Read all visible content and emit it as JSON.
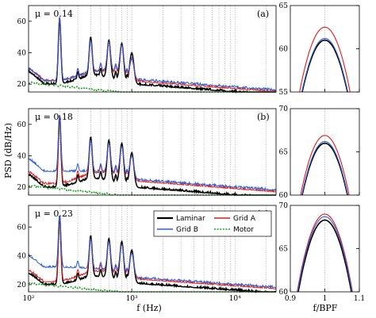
{
  "figure": {
    "ylabel": "PSD (dB/Hz)",
    "xlabel_left": "f (Hz)",
    "xlabel_right": "f/BPF",
    "left_xticklabels": [
      "10²",
      "10³",
      "10⁴"
    ],
    "right_xticklabels": [
      "0.9",
      "1",
      "1.1"
    ],
    "legend": [
      "Laminar",
      "Grid A",
      "Grid B",
      "Motor"
    ],
    "colors": {
      "Laminar": "#000000",
      "Grid A": "#e41a1c",
      "Grid B": "#2b5fd9",
      "Motor": "#1fa11f"
    }
  },
  "chart_data": [
    {
      "type": "line",
      "panel": "a",
      "annotation": "μ = 0.14",
      "letter": "(a)",
      "xscale": "log",
      "xlim": [
        100,
        25000
      ],
      "ylim": [
        15,
        70
      ],
      "yticks": [
        20,
        40,
        60
      ],
      "peaks_hz": [
        200,
        400,
        600,
        800,
        1000
      ],
      "series": [
        {
          "name": "Laminar",
          "peak_db": [
            62,
            50,
            48,
            46,
            40
          ],
          "floor_db": [
            20,
            26,
            24,
            22,
            20
          ]
        },
        {
          "name": "Grid A",
          "peak_db": [
            63,
            48,
            47,
            45,
            36
          ],
          "floor_db": [
            22,
            28,
            28,
            26,
            22
          ]
        },
        {
          "name": "Grid B",
          "peak_db": [
            63,
            48,
            47,
            45,
            37
          ],
          "floor_db": [
            22,
            28,
            29,
            27,
            23
          ]
        },
        {
          "name": "Motor",
          "peak_db": [
            21,
            20,
            19,
            18,
            17
          ],
          "floor_db": [
            17,
            16,
            15,
            14,
            13
          ]
        }
      ]
    },
    {
      "type": "line",
      "panel": "b",
      "annotation": "μ = 0.18",
      "letter": "(b)",
      "xscale": "log",
      "xlim": [
        100,
        25000
      ],
      "ylim": [
        15,
        70
      ],
      "yticks": [
        20,
        40,
        60
      ],
      "peaks_hz": [
        200,
        400,
        600,
        800,
        1000
      ],
      "series": [
        {
          "name": "Laminar",
          "peak_db": [
            66,
            52,
            50,
            48,
            42
          ],
          "floor_db": [
            20,
            26,
            24,
            22,
            20
          ]
        },
        {
          "name": "Grid A",
          "peak_db": [
            66,
            50,
            48,
            46,
            40
          ],
          "floor_db": [
            22,
            29,
            29,
            27,
            24
          ]
        },
        {
          "name": "Grid B",
          "peak_db": [
            66,
            50,
            48,
            46,
            40
          ],
          "floor_db": [
            30,
            30,
            30,
            28,
            25
          ]
        },
        {
          "name": "Motor",
          "peak_db": [
            21,
            20,
            19,
            18,
            17
          ],
          "floor_db": [
            17,
            16,
            15,
            14,
            13
          ]
        }
      ]
    },
    {
      "type": "line",
      "panel": "c",
      "annotation": "μ = 0.23",
      "letter": "(c)",
      "xscale": "log",
      "xlim": [
        100,
        25000
      ],
      "ylim": [
        15,
        75
      ],
      "yticks": [
        20,
        40,
        60
      ],
      "peaks_hz": [
        200,
        400,
        600,
        800,
        1000
      ],
      "series": [
        {
          "name": "Laminar",
          "peak_db": [
            68,
            54,
            52,
            50,
            44
          ],
          "floor_db": [
            20,
            26,
            25,
            23,
            21
          ]
        },
        {
          "name": "Grid A",
          "peak_db": [
            68,
            52,
            50,
            48,
            42
          ],
          "floor_db": [
            22,
            29,
            29,
            27,
            24
          ]
        },
        {
          "name": "Grid B",
          "peak_db": [
            68,
            52,
            50,
            48,
            42
          ],
          "floor_db": [
            32,
            31,
            30,
            28,
            25
          ]
        },
        {
          "name": "Motor",
          "peak_db": [
            21,
            20,
            19,
            18,
            17
          ],
          "floor_db": [
            17,
            16,
            15,
            14,
            13
          ]
        }
      ]
    },
    {
      "type": "line",
      "panel": "a-zoom",
      "xlim": [
        0.9,
        1.1
      ],
      "ylim": [
        55,
        65
      ],
      "yticks": [
        55,
        60,
        65
      ],
      "series": [
        {
          "name": "Laminar",
          "peak_db": 61.0
        },
        {
          "name": "Grid A",
          "peak_db": 62.5
        },
        {
          "name": "Grid B",
          "peak_db": 61.2
        }
      ]
    },
    {
      "type": "line",
      "panel": "b-zoom",
      "xlim": [
        0.9,
        1.1
      ],
      "ylim": [
        60,
        70
      ],
      "yticks": [
        60,
        65,
        70
      ],
      "series": [
        {
          "name": "Laminar",
          "peak_db": 66.0
        },
        {
          "name": "Grid A",
          "peak_db": 66.9
        },
        {
          "name": "Grid B",
          "peak_db": 66.2
        }
      ]
    },
    {
      "type": "line",
      "panel": "c-zoom",
      "xlim": [
        0.9,
        1.1
      ],
      "ylim": [
        60,
        70
      ],
      "yticks": [
        60,
        65,
        70
      ],
      "series": [
        {
          "name": "Laminar",
          "peak_db": 68.3
        },
        {
          "name": "Grid A",
          "peak_db": 69.0
        },
        {
          "name": "Grid B",
          "peak_db": 68.7
        }
      ]
    }
  ]
}
